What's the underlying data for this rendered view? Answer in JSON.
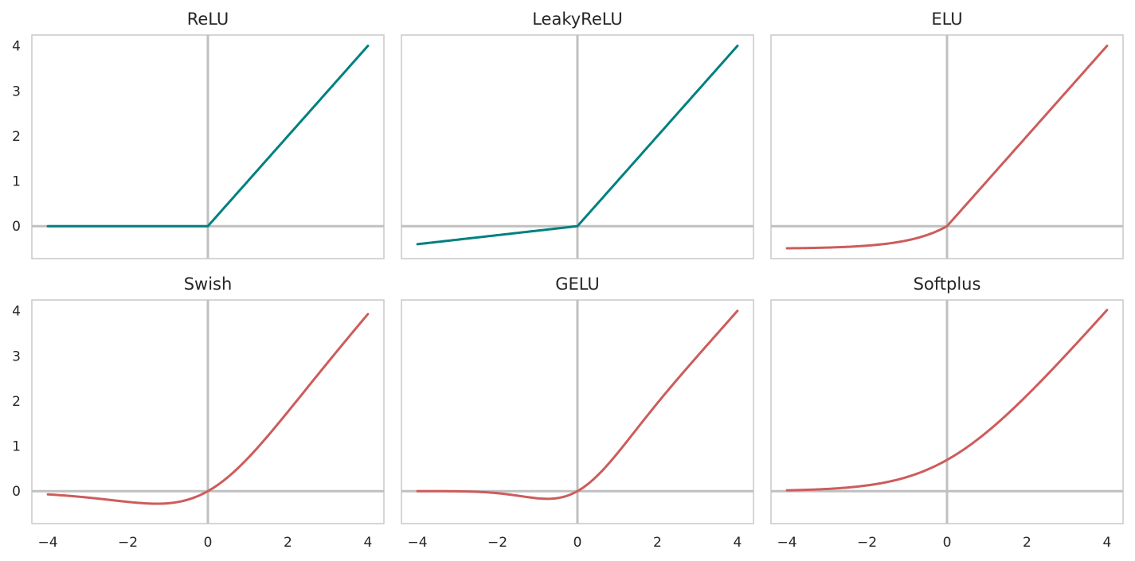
{
  "colors": {
    "teal": "#008080",
    "red": "#cd5c5c"
  },
  "chart_data": [
    {
      "type": "line",
      "title": "ReLU",
      "fn": "relu",
      "color": "#008080",
      "x": [
        -4,
        -3,
        -2,
        -1,
        0,
        1,
        2,
        3,
        4
      ],
      "y": [
        0,
        0,
        0,
        0,
        0,
        1,
        2,
        3,
        4
      ],
      "xlim": [
        -4.4,
        4.4
      ],
      "ylim": [
        -0.72,
        4.24
      ],
      "xticks": [
        "−4",
        "−2",
        "0",
        "2",
        "4"
      ],
      "yticks": [
        "0",
        "1",
        "2",
        "3",
        "4"
      ],
      "grid": false
    },
    {
      "type": "line",
      "title": "LeakyReLU",
      "fn": "leaky",
      "color": "#008080",
      "x": [
        -4,
        -3,
        -2,
        -1,
        0,
        1,
        2,
        3,
        4
      ],
      "y": [
        -0.4,
        -0.3,
        -0.2,
        -0.1,
        0,
        1,
        2,
        3,
        4
      ],
      "xlim": [
        -4.4,
        4.4
      ],
      "ylim": [
        -0.72,
        4.24
      ],
      "xticks": [
        "−4",
        "−2",
        "0",
        "2",
        "4"
      ],
      "yticks": [
        "0",
        "1",
        "2",
        "3",
        "4"
      ],
      "grid": false
    },
    {
      "type": "line",
      "title": "ELU",
      "fn": "elu",
      "color": "#cd5c5c",
      "x": [
        -4,
        -3,
        -2,
        -1,
        0,
        1,
        2,
        3,
        4
      ],
      "y": [
        -0.49,
        -0.48,
        -0.43,
        -0.32,
        0,
        1,
        2,
        3,
        4
      ],
      "xlim": [
        -4.4,
        4.4
      ],
      "ylim": [
        -0.72,
        4.24
      ],
      "xticks": [
        "−4",
        "−2",
        "0",
        "2",
        "4"
      ],
      "yticks": [
        "0",
        "1",
        "2",
        "3",
        "4"
      ],
      "grid": false
    },
    {
      "type": "line",
      "title": "Swish",
      "fn": "swish",
      "color": "#cd5c5c",
      "x": [
        -4,
        -3,
        -2,
        -1,
        0,
        1,
        2,
        3,
        4
      ],
      "y": [
        -0.07,
        -0.14,
        -0.24,
        -0.27,
        0,
        0.73,
        1.76,
        2.86,
        3.93
      ],
      "xlim": [
        -4.4,
        4.4
      ],
      "ylim": [
        -0.72,
        4.24
      ],
      "xticks": [
        "−4",
        "−2",
        "0",
        "2",
        "4"
      ],
      "yticks": [
        "0",
        "1",
        "2",
        "3",
        "4"
      ],
      "grid": false
    },
    {
      "type": "line",
      "title": "GELU",
      "fn": "gelu",
      "color": "#cd5c5c",
      "x": [
        -4,
        -3,
        -2,
        -1,
        0,
        1,
        2,
        3,
        4
      ],
      "y": [
        0,
        0,
        -0.05,
        -0.16,
        0,
        0.84,
        1.95,
        3,
        4
      ],
      "xlim": [
        -4.4,
        4.4
      ],
      "ylim": [
        -0.72,
        4.24
      ],
      "xticks": [
        "−4",
        "−2",
        "0",
        "2",
        "4"
      ],
      "yticks": [
        "0",
        "1",
        "2",
        "3",
        "4"
      ],
      "grid": false
    },
    {
      "type": "line",
      "title": "Softplus",
      "fn": "softplus",
      "color": "#cd5c5c",
      "x": [
        -4,
        -3,
        -2,
        -1,
        0,
        1,
        2,
        3,
        4
      ],
      "y": [
        0.02,
        0.05,
        0.13,
        0.31,
        0.69,
        1.31,
        2.13,
        3.05,
        4.02
      ],
      "xlim": [
        -4.4,
        4.4
      ],
      "ylim": [
        -0.72,
        4.24
      ],
      "xticks": [
        "−4",
        "−2",
        "0",
        "2",
        "4"
      ],
      "yticks": [
        "0",
        "1",
        "2",
        "3",
        "4"
      ],
      "grid": false
    }
  ]
}
